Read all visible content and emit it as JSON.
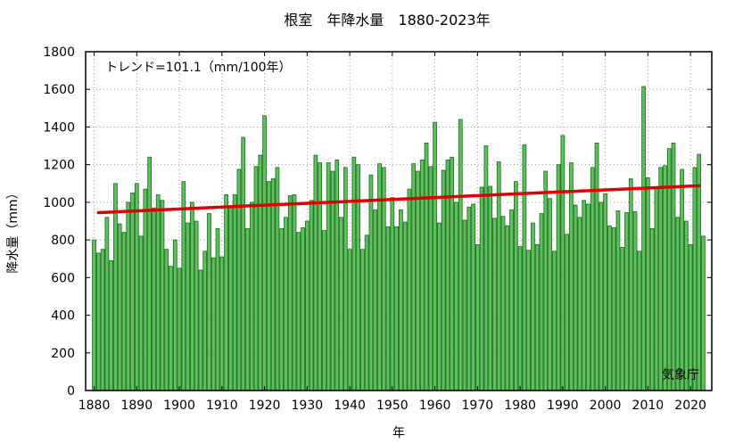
{
  "chart_data": {
    "type": "bar",
    "title": "根室　年降水量　1880-2023年",
    "xlabel": "年",
    "ylabel": "降水量（mm）",
    "trend_label": "トレンド=101.1（mm/100年）",
    "credit": "気象庁",
    "xlim": [
      1878,
      2025
    ],
    "ylim": [
      0,
      1800
    ],
    "xticks": [
      1880,
      1890,
      1900,
      1910,
      1920,
      1930,
      1940,
      1950,
      1960,
      1970,
      1980,
      1990,
      2000,
      2010,
      2020
    ],
    "yticks": [
      0,
      200,
      400,
      600,
      800,
      1000,
      1200,
      1400,
      1600,
      1800
    ],
    "grid": true,
    "bar_color": "#5cc05c",
    "bar_edge_color": "#1f6b1f",
    "trend_color": "#e00000",
    "trend": {
      "x": [
        1881,
        2022
      ],
      "y": [
        945,
        1088
      ]
    },
    "x": [
      1880,
      1881,
      1882,
      1883,
      1884,
      1885,
      1886,
      1887,
      1888,
      1889,
      1890,
      1891,
      1892,
      1893,
      1894,
      1895,
      1896,
      1897,
      1898,
      1899,
      1900,
      1901,
      1902,
      1903,
      1904,
      1905,
      1906,
      1907,
      1908,
      1909,
      1910,
      1911,
      1912,
      1913,
      1914,
      1915,
      1916,
      1917,
      1918,
      1919,
      1920,
      1921,
      1922,
      1923,
      1924,
      1925,
      1926,
      1927,
      1928,
      1929,
      1930,
      1931,
      1932,
      1933,
      1934,
      1935,
      1936,
      1937,
      1938,
      1939,
      1940,
      1941,
      1942,
      1943,
      1944,
      1945,
      1946,
      1947,
      1948,
      1949,
      1950,
      1951,
      1952,
      1953,
      1954,
      1955,
      1956,
      1957,
      1958,
      1959,
      1960,
      1961,
      1962,
      1963,
      1964,
      1965,
      1966,
      1967,
      1968,
      1969,
      1970,
      1971,
      1972,
      1973,
      1974,
      1975,
      1976,
      1977,
      1978,
      1979,
      1980,
      1981,
      1982,
      1983,
      1984,
      1985,
      1986,
      1987,
      1988,
      1989,
      1990,
      1991,
      1992,
      1993,
      1994,
      1995,
      1996,
      1997,
      1998,
      1999,
      2000,
      2001,
      2002,
      2003,
      2004,
      2005,
      2006,
      2007,
      2008,
      2009,
      2010,
      2011,
      2012,
      2013,
      2014,
      2015,
      2016,
      2017,
      2018,
      2019,
      2020,
      2021,
      2022,
      2023
    ],
    "values": [
      800,
      730,
      750,
      920,
      690,
      1100,
      885,
      840,
      1000,
      1050,
      1100,
      820,
      1070,
      1240,
      970,
      1040,
      1010,
      750,
      660,
      800,
      650,
      1110,
      890,
      1000,
      900,
      640,
      740,
      940,
      705,
      860,
      710,
      1040,
      970,
      1040,
      1175,
      1345,
      860,
      1000,
      1190,
      1250,
      1460,
      1110,
      1125,
      1185,
      860,
      920,
      1035,
      1040,
      840,
      865,
      900,
      1010,
      1250,
      1210,
      850,
      1210,
      1165,
      1225,
      920,
      1185,
      750,
      1240,
      1200,
      750,
      825,
      1145,
      960,
      1205,
      1185,
      870,
      1025,
      870,
      960,
      895,
      1070,
      1205,
      1165,
      1225,
      1315,
      1190,
      1425,
      890,
      1170,
      1225,
      1240,
      1000,
      1440,
      905,
      975,
      990,
      775,
      1080,
      1300,
      1085,
      915,
      1215,
      925,
      875,
      960,
      1110,
      765,
      1305,
      745,
      890,
      775,
      940,
      1165,
      1020,
      740,
      1200,
      1355,
      830,
      1210,
      985,
      920,
      1010,
      990,
      1185,
      1315,
      1000,
      1045,
      875,
      865,
      955,
      760,
      945,
      1125,
      950,
      740,
      1615,
      1130,
      860,
      1080,
      1185,
      1195,
      1285,
      1315,
      920,
      1175,
      900,
      775,
      1185,
      1255,
      820
    ]
  }
}
